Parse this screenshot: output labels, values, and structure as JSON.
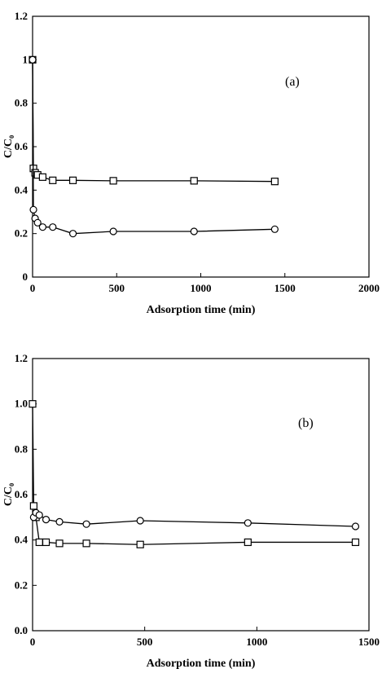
{
  "chart_data": [
    {
      "type": "line",
      "title": "",
      "panel_label": "(a)",
      "xlabel": "Adsorption time (min)",
      "ylabel": "C/C₀",
      "xlim": [
        0,
        2000
      ],
      "ylim": [
        0,
        1.2
      ],
      "xticks": [
        0,
        500,
        1000,
        1500,
        2000
      ],
      "xtick_labels": [
        "0",
        "500",
        "1000",
        "1500",
        "2000"
      ],
      "yticks": [
        0,
        0.2,
        0.4,
        0.6,
        0.8,
        1.0,
        1.2
      ],
      "ytick_labels": [
        "0",
        "0.2",
        "0.4",
        "0.6",
        "0.8",
        "1",
        "1.2"
      ],
      "grid": false,
      "series": [
        {
          "marker": "square",
          "x": [
            0,
            5,
            15,
            30,
            60,
            120,
            240,
            480,
            960,
            1440
          ],
          "y": [
            1.0,
            0.5,
            0.48,
            0.47,
            0.46,
            0.445,
            0.445,
            0.443,
            0.443,
            0.44
          ]
        },
        {
          "marker": "circle",
          "x": [
            0,
            5,
            15,
            30,
            60,
            120,
            240,
            480,
            960,
            1440
          ],
          "y": [
            1.0,
            0.31,
            0.27,
            0.25,
            0.23,
            0.23,
            0.2,
            0.21,
            0.21,
            0.22
          ]
        }
      ]
    },
    {
      "type": "line",
      "title": "",
      "panel_label": "(b)",
      "xlabel": "Adsorption time (min)",
      "ylabel": "C/C₀",
      "xlim": [
        0,
        1500
      ],
      "ylim": [
        0,
        1.2
      ],
      "xticks": [
        0,
        500,
        1000,
        1500
      ],
      "xtick_labels": [
        "0",
        "500",
        "1000",
        "1500"
      ],
      "yticks": [
        0,
        0.2,
        0.4,
        0.6,
        0.8,
        1.0,
        1.2
      ],
      "ytick_labels": [
        "0.0",
        "0.2",
        "0.4",
        "0.6",
        "0.8",
        "1.0",
        "1.2"
      ],
      "grid": false,
      "series": [
        {
          "marker": "square",
          "x": [
            0,
            5,
            15,
            30,
            60,
            120,
            240,
            480,
            960,
            1440
          ],
          "y": [
            1.0,
            0.55,
            0.5,
            0.39,
            0.39,
            0.385,
            0.385,
            0.38,
            0.39,
            0.39
          ]
        },
        {
          "marker": "circle",
          "x": [
            5,
            15,
            30,
            60,
            120,
            240,
            480,
            960,
            1440
          ],
          "y": [
            0.5,
            0.52,
            0.51,
            0.49,
            0.48,
            0.47,
            0.485,
            0.475,
            0.46
          ]
        }
      ]
    }
  ]
}
